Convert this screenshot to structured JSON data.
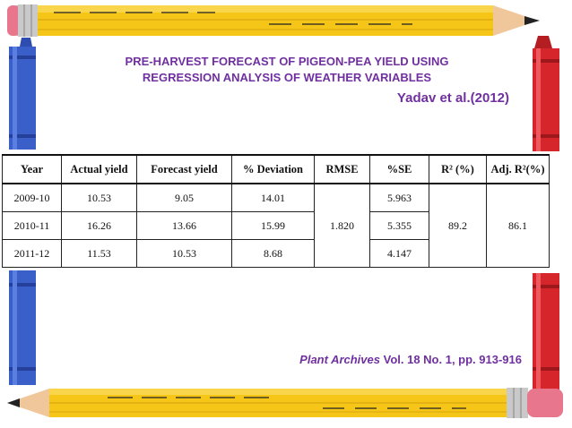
{
  "slide": {
    "title_line1": "PRE-HARVEST FORECAST OF PIGEON-PEA YIELD USING",
    "title_line2": "REGRESSION ANALYSIS OF WEATHER VARIABLES",
    "author": "Yadav et al.(2012)",
    "citation_journal": "Plant Archives",
    "citation_rest": " Vol. 18 No. 1,  pp. 913-916"
  },
  "table": {
    "headers": [
      "Year",
      "Actual yield",
      "Forecast yield",
      "% Deviation",
      "RMSE",
      "%SE",
      "R² (%)",
      "Adj. R²(%)"
    ],
    "rows": [
      [
        "2009-10",
        "10.53",
        "9.05",
        "14.01",
        "5.963"
      ],
      [
        "2010-11",
        "16.26",
        "13.66",
        "15.99",
        "5.355"
      ],
      [
        "2011-12",
        "11.53",
        "10.53",
        "8.68",
        "4.147"
      ]
    ],
    "rmse": "1.820",
    "r2": "89.2",
    "adj_r2": "86.1"
  },
  "colors": {
    "accent": "#7030a0",
    "pencil_yellow": "#f5c518",
    "pencil_blue": "#3a5fc8",
    "pencil_red": "#d7262b"
  },
  "decor": [
    "yellow-pencil-top",
    "yellow-pencil-bottom",
    "blue-crayon-left",
    "red-crayon-right"
  ]
}
